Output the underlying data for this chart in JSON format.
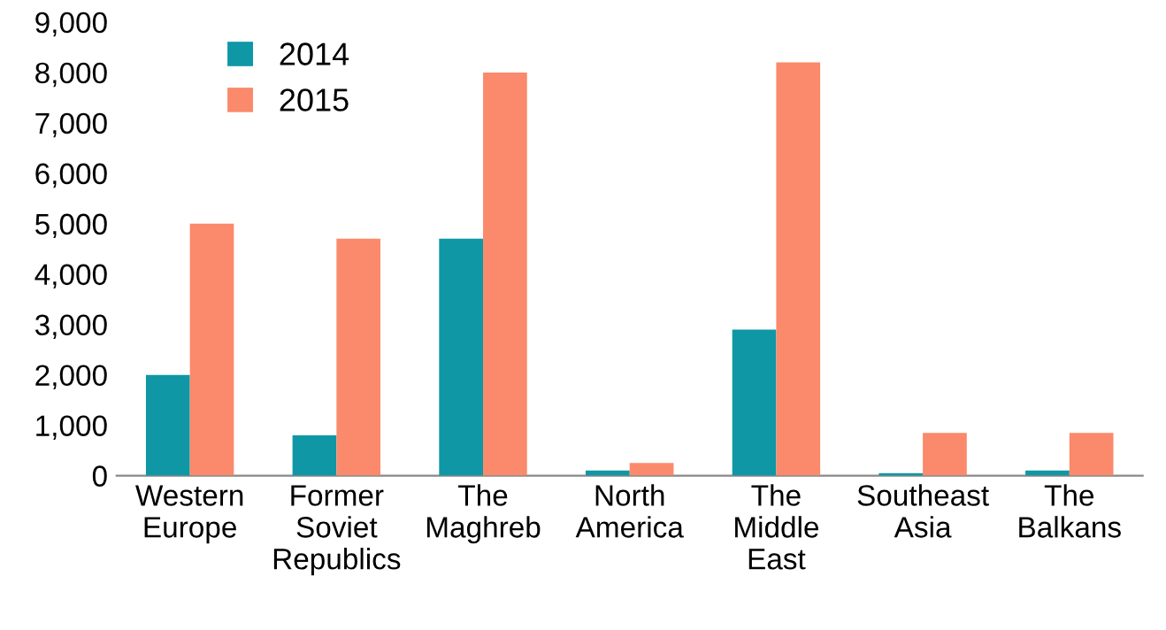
{
  "chart_data": {
    "type": "bar",
    "categories": [
      "Western\nEurope",
      "Former\nSoviet\nRepublics",
      "The\nMaghreb",
      "North\nAmerica",
      "The\nMiddle\nEast",
      "Southeast\nAsia",
      "The\nBalkans"
    ],
    "series": [
      {
        "name": "2014",
        "color": "#0f97a6",
        "values": [
          2000,
          800,
          4700,
          100,
          2900,
          50,
          100
        ]
      },
      {
        "name": "2015",
        "color": "#fa8a6b",
        "values": [
          5000,
          4700,
          8000,
          250,
          8200,
          850,
          850
        ]
      }
    ],
    "ylim": [
      0,
      9000
    ],
    "yticks": [
      {
        "value": 0,
        "label": "0"
      },
      {
        "value": 1000,
        "label": "1,000"
      },
      {
        "value": 2000,
        "label": "2,000"
      },
      {
        "value": 3000,
        "label": "3,000"
      },
      {
        "value": 4000,
        "label": "4,000"
      },
      {
        "value": 5000,
        "label": "5,000"
      },
      {
        "value": 6000,
        "label": "6,000"
      },
      {
        "value": 7000,
        "label": "7,000"
      },
      {
        "value": 8000,
        "label": "8,000"
      },
      {
        "value": 9000,
        "label": "9,000"
      }
    ],
    "grid": false,
    "legend": "top left"
  }
}
